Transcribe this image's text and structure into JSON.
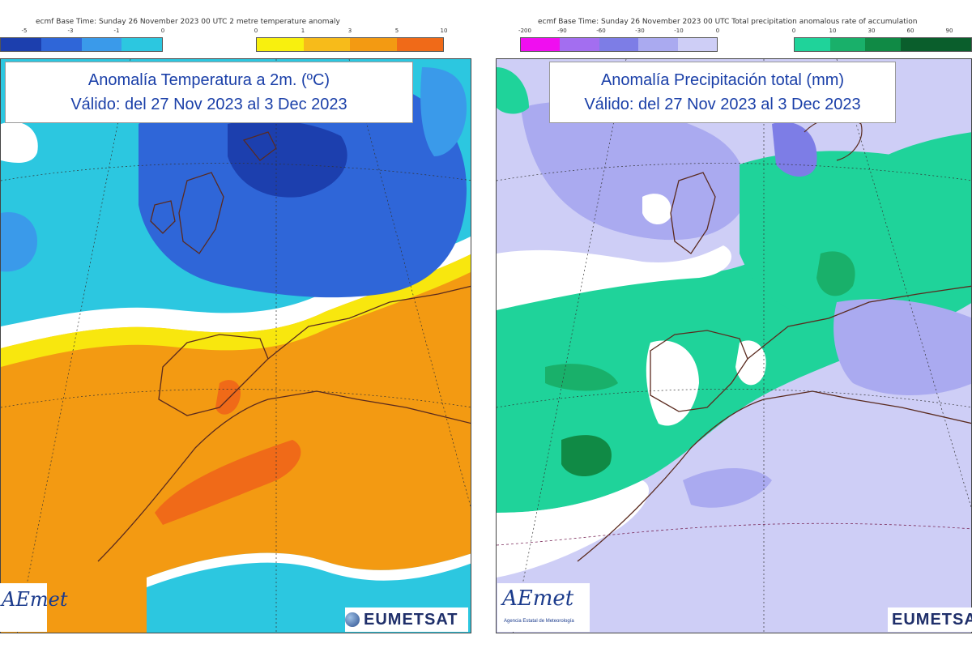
{
  "left": {
    "header": "ecmf  Base Time: Sunday 26 November 2023 00 UTC 2 metre temperature anomaly",
    "cold_ticks": [
      "-5",
      "-3",
      "-1",
      "0"
    ],
    "warm_ticks": [
      "0",
      "1",
      "3",
      "5",
      "10"
    ],
    "title_line1": "Anomalía Temperatura a 2m. (ºC)",
    "title_line2": "Válido: del 27 Nov 2023 al 3 Dec 2023",
    "colors": {
      "dark_blue": "#1c3fae",
      "mid_blue": "#2f66d8",
      "light_blue": "#3a9aea",
      "cyan": "#2cc7e0",
      "yellow": "#f8f00e",
      "light_orange": "#f7bb1a",
      "orange": "#f39a12",
      "dark_orange": "#f06a18",
      "white": "#ffffff"
    }
  },
  "right": {
    "header": "ecmf  Base Time: Sunday 26 November 2023 00 UTC Total precipitation anomalous rate of accumulation",
    "dry_ticks": [
      "-200",
      "-90",
      "-60",
      "-30",
      "-10",
      "0"
    ],
    "wet_ticks": [
      "0",
      "10",
      "30",
      "60",
      "90"
    ],
    "title_line1": "Anomalía Precipitación total (mm)",
    "title_line2": "Válido: del 27 Nov 2023 al 3 Dec 2023",
    "colors": {
      "magenta": "#f00ef0",
      "violet": "#a36ef0",
      "purple": "#7d7de6",
      "lavender": "#aaaaf0",
      "pale_lavender": "#cecef6",
      "white": "#ffffff",
      "light_green": "#1fd39a",
      "green": "#19b06a",
      "dark_green": "#108a45",
      "darkest_green": "#0a5e2c"
    }
  },
  "logos": {
    "aemet_text": "AEmet",
    "aemet_sub": "Agencia Estatal de Meteorología",
    "eumetsat_text": "EUMETSAT"
  }
}
